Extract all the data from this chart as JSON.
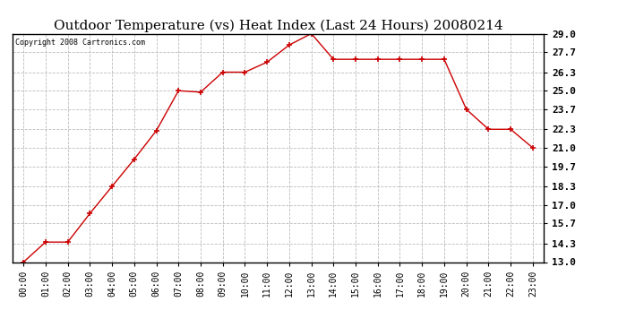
{
  "title": "Outdoor Temperature (vs) Heat Index (Last 24 Hours) 20080214",
  "copyright": "Copyright 2008 Cartronics.com",
  "x_labels": [
    "00:00",
    "01:00",
    "02:00",
    "03:00",
    "04:00",
    "05:00",
    "06:00",
    "07:00",
    "08:00",
    "09:00",
    "10:00",
    "11:00",
    "12:00",
    "13:00",
    "14:00",
    "15:00",
    "16:00",
    "17:00",
    "18:00",
    "19:00",
    "20:00",
    "21:00",
    "22:00",
    "23:00"
  ],
  "y_values": [
    13.0,
    14.4,
    14.4,
    16.4,
    18.3,
    20.2,
    22.2,
    25.0,
    24.9,
    26.3,
    26.3,
    27.0,
    28.2,
    29.0,
    27.2,
    27.2,
    27.2,
    27.2,
    27.2,
    27.2,
    23.7,
    22.3,
    22.3,
    21.0
  ],
  "line_color": "#cc0000",
  "marker": "+",
  "marker_size": 5,
  "marker_color": "#cc0000",
  "grid_color": "#bbbbbb",
  "background_color": "#ffffff",
  "y_ticks": [
    13.0,
    14.3,
    15.7,
    17.0,
    18.3,
    19.7,
    21.0,
    22.3,
    23.7,
    25.0,
    26.3,
    27.7,
    29.0
  ],
  "y_tick_labels": [
    "13.0",
    "14.3",
    "15.7",
    "17.0",
    "18.3",
    "19.7",
    "21.0",
    "22.3",
    "23.7",
    "25.0",
    "26.3",
    "27.7",
    "29.0"
  ],
  "ylim": [
    13.0,
    29.0
  ],
  "title_fontsize": 11,
  "copyright_fontsize": 6,
  "tick_fontsize": 7,
  "fig_width": 6.9,
  "fig_height": 3.75,
  "dpi": 100
}
